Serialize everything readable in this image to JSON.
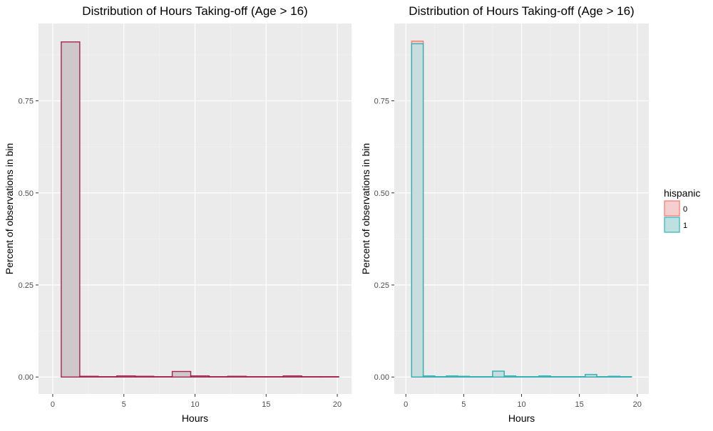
{
  "chart_data": [
    {
      "type": "histogram",
      "title": "Distribution of Hours Taking-off (Age > 16)",
      "xlabel": "Hours",
      "ylabel": "Percent of observations in bin",
      "xlim": [
        -1,
        21
      ],
      "ylim": [
        -0.046,
        0.96
      ],
      "x_ticks": [
        0,
        5,
        10,
        15,
        20
      ],
      "x_tick_labels": [
        "0",
        "5",
        "10",
        "15",
        "20"
      ],
      "y_ticks": [
        0,
        0.25,
        0.5,
        0.75
      ],
      "y_tick_labels": [
        "0.00",
        "0.25",
        "0.50",
        "0.75"
      ],
      "grid": true,
      "bin_width": 1.3,
      "bin_starts": [
        0.6,
        1.9,
        3.2,
        4.5,
        5.8,
        7.1,
        8.4,
        9.7,
        11.0,
        12.3,
        13.6,
        14.9,
        16.2,
        17.5,
        18.8
      ],
      "series": [
        {
          "color": "#a3244d",
          "fill": "#cfc8cb",
          "values": [
            0.91,
            0.002,
            0.001,
            0.003,
            0.002,
            0.001,
            0.015,
            0.003,
            0.001,
            0.002,
            0.001,
            0.001,
            0.003,
            0.001,
            0.001
          ]
        }
      ]
    },
    {
      "type": "histogram",
      "title": "Distribution of Hours Taking-off (Age > 16)",
      "xlabel": "Hours",
      "ylabel": "Percent of observations in bin",
      "xlim": [
        -1,
        21
      ],
      "ylim": [
        -0.046,
        0.96
      ],
      "x_ticks": [
        0,
        5,
        10,
        15,
        20
      ],
      "x_tick_labels": [
        "0",
        "5",
        "10",
        "15",
        "20"
      ],
      "y_ticks": [
        0,
        0.25,
        0.5,
        0.75
      ],
      "y_tick_labels": [
        "0.00",
        "0.25",
        "0.50",
        "0.75"
      ],
      "grid": true,
      "bin_width": 1.0,
      "bin_starts": [
        0.5,
        1.5,
        2.5,
        3.5,
        4.5,
        5.5,
        6.5,
        7.5,
        8.5,
        9.5,
        10.5,
        11.5,
        12.5,
        13.5,
        14.5,
        15.5,
        16.5,
        17.5,
        18.5
      ],
      "series": [
        {
          "name": "0",
          "color": "#f8766d",
          "fill": "#f5cfcd",
          "values": [
            0.912,
            0.002,
            0.001,
            0.002,
            0.001,
            0.001,
            0.001,
            0.015,
            0.002,
            0.001,
            0.001,
            0.002,
            0.001,
            0.001,
            0.001,
            0.006,
            0.001,
            0.002,
            0.001
          ]
        },
        {
          "name": "1",
          "color": "#2db3b8",
          "fill": "#bfe0e1",
          "values": [
            0.905,
            0.003,
            0.001,
            0.003,
            0.002,
            0.001,
            0.001,
            0.016,
            0.003,
            0.001,
            0.001,
            0.003,
            0.001,
            0.001,
            0.001,
            0.007,
            0.001,
            0.002,
            0.001
          ]
        }
      ],
      "legend": {
        "title": "hispanic",
        "placement": "right",
        "entries": [
          "0",
          "1"
        ]
      }
    }
  ]
}
